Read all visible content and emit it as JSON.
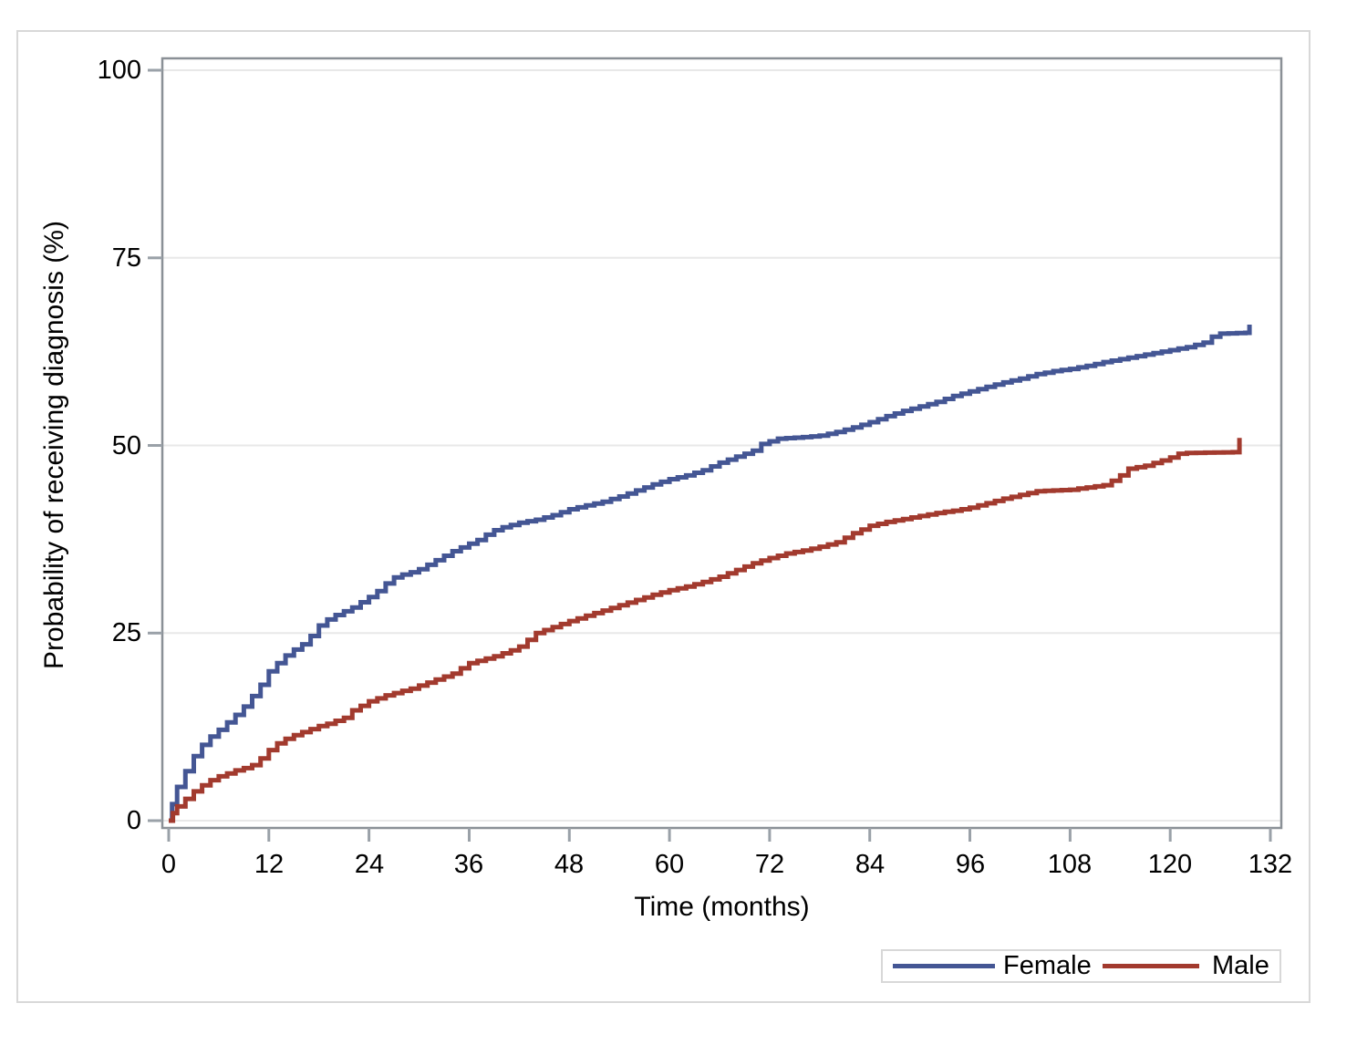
{
  "chart_data": {
    "type": "line",
    "subtype": "kaplan-meier-step",
    "title": "",
    "xlabel": "Time (months)",
    "ylabel": "Probability of receiving diagnosis (%)",
    "xlim": [
      0,
      132
    ],
    "ylim": [
      0,
      100
    ],
    "x_ticks": [
      0,
      12,
      24,
      36,
      48,
      60,
      72,
      84,
      96,
      108,
      120,
      132
    ],
    "y_ticks": [
      0,
      25,
      50,
      75,
      100
    ],
    "grid": "horizontal",
    "legend_position": "bottom-right",
    "series": [
      {
        "name": "Female",
        "color": "#445694",
        "points": [
          [
            0,
            0
          ],
          [
            0.4,
            2.2
          ],
          [
            1,
            4.5
          ],
          [
            2,
            6.6
          ],
          [
            3,
            8.6
          ],
          [
            4,
            10.1
          ],
          [
            5,
            11.2
          ],
          [
            6,
            12.1
          ],
          [
            7,
            13.1
          ],
          [
            8,
            14.1
          ],
          [
            9,
            15.2
          ],
          [
            10,
            16.6
          ],
          [
            11,
            18.1
          ],
          [
            12,
            19.9
          ],
          [
            13,
            21.0
          ],
          [
            14,
            22.0
          ],
          [
            15,
            22.8
          ],
          [
            16,
            23.5
          ],
          [
            17,
            24.6
          ],
          [
            18,
            26.0
          ],
          [
            19,
            26.8
          ],
          [
            20,
            27.4
          ],
          [
            21,
            27.9
          ],
          [
            22,
            28.4
          ],
          [
            23,
            29.1
          ],
          [
            24,
            29.8
          ],
          [
            25,
            30.6
          ],
          [
            26,
            31.6
          ],
          [
            27,
            32.4
          ],
          [
            28,
            32.8
          ],
          [
            29,
            33.1
          ],
          [
            30,
            33.5
          ],
          [
            31,
            34.1
          ],
          [
            32,
            34.7
          ],
          [
            33,
            35.3
          ],
          [
            34,
            35.9
          ],
          [
            35,
            36.4
          ],
          [
            36,
            36.9
          ],
          [
            37,
            37.4
          ],
          [
            38,
            38.1
          ],
          [
            39,
            38.7
          ],
          [
            40,
            39.1
          ],
          [
            41,
            39.4
          ],
          [
            42,
            39.7
          ],
          [
            43,
            39.9
          ],
          [
            44,
            40.1
          ],
          [
            45,
            40.4
          ],
          [
            46,
            40.7
          ],
          [
            47,
            41.1
          ],
          [
            48,
            41.5
          ],
          [
            50,
            42.0
          ],
          [
            52,
            42.5
          ],
          [
            54,
            43.2
          ],
          [
            56,
            44.0
          ],
          [
            58,
            44.8
          ],
          [
            60,
            45.5
          ],
          [
            62,
            46.0
          ],
          [
            64,
            46.7
          ],
          [
            66,
            47.7
          ],
          [
            68,
            48.5
          ],
          [
            70,
            49.3
          ],
          [
            71,
            50.2
          ],
          [
            73,
            50.9
          ],
          [
            76,
            51.1
          ],
          [
            78,
            51.3
          ],
          [
            80,
            51.8
          ],
          [
            82,
            52.4
          ],
          [
            84,
            53.1
          ],
          [
            86,
            53.9
          ],
          [
            88,
            54.6
          ],
          [
            90,
            55.2
          ],
          [
            92,
            55.8
          ],
          [
            94,
            56.6
          ],
          [
            96,
            57.2
          ],
          [
            98,
            57.8
          ],
          [
            100,
            58.4
          ],
          [
            102,
            58.9
          ],
          [
            104,
            59.5
          ],
          [
            106,
            59.9
          ],
          [
            108,
            60.2
          ],
          [
            110,
            60.6
          ],
          [
            112,
            61.1
          ],
          [
            114,
            61.5
          ],
          [
            116,
            61.9
          ],
          [
            118,
            62.3
          ],
          [
            120,
            62.7
          ],
          [
            122,
            63.1
          ],
          [
            124,
            63.7
          ],
          [
            125,
            64.5
          ],
          [
            126,
            64.9
          ],
          [
            129,
            65.0
          ],
          [
            129.5,
            66.1
          ]
        ]
      },
      {
        "name": "Male",
        "color": "#A23A2E",
        "points": [
          [
            0,
            0
          ],
          [
            0.5,
            1.0
          ],
          [
            1,
            1.9
          ],
          [
            2,
            2.9
          ],
          [
            3,
            3.9
          ],
          [
            4,
            4.7
          ],
          [
            5,
            5.4
          ],
          [
            6,
            5.9
          ],
          [
            7,
            6.3
          ],
          [
            8,
            6.7
          ],
          [
            9,
            7.0
          ],
          [
            10,
            7.4
          ],
          [
            11,
            8.3
          ],
          [
            12,
            9.4
          ],
          [
            13,
            10.3
          ],
          [
            14,
            10.9
          ],
          [
            15,
            11.4
          ],
          [
            16,
            11.8
          ],
          [
            17,
            12.2
          ],
          [
            18,
            12.6
          ],
          [
            19,
            12.9
          ],
          [
            20,
            13.3
          ],
          [
            21,
            13.7
          ],
          [
            22,
            14.7
          ],
          [
            23,
            15.3
          ],
          [
            24,
            15.9
          ],
          [
            25,
            16.3
          ],
          [
            26,
            16.7
          ],
          [
            27,
            17.0
          ],
          [
            28,
            17.3
          ],
          [
            29,
            17.6
          ],
          [
            30,
            18.0
          ],
          [
            31,
            18.4
          ],
          [
            32,
            18.8
          ],
          [
            33,
            19.2
          ],
          [
            34,
            19.6
          ],
          [
            35,
            20.3
          ],
          [
            36,
            21.0
          ],
          [
            37,
            21.3
          ],
          [
            38,
            21.6
          ],
          [
            39,
            21.9
          ],
          [
            40,
            22.3
          ],
          [
            41,
            22.7
          ],
          [
            42,
            23.2
          ],
          [
            43,
            24.1
          ],
          [
            44,
            25.0
          ],
          [
            45,
            25.4
          ],
          [
            46,
            25.8
          ],
          [
            47,
            26.2
          ],
          [
            48,
            26.6
          ],
          [
            50,
            27.3
          ],
          [
            52,
            28.0
          ],
          [
            54,
            28.7
          ],
          [
            56,
            29.4
          ],
          [
            58,
            30.1
          ],
          [
            60,
            30.7
          ],
          [
            62,
            31.2
          ],
          [
            64,
            31.8
          ],
          [
            66,
            32.5
          ],
          [
            68,
            33.4
          ],
          [
            70,
            34.3
          ],
          [
            72,
            35.0
          ],
          [
            74,
            35.6
          ],
          [
            76,
            36.0
          ],
          [
            78,
            36.5
          ],
          [
            80,
            37.1
          ],
          [
            82,
            38.3
          ],
          [
            84,
            39.3
          ],
          [
            86,
            39.8
          ],
          [
            88,
            40.2
          ],
          [
            90,
            40.6
          ],
          [
            92,
            41.0
          ],
          [
            94,
            41.3
          ],
          [
            96,
            41.7
          ],
          [
            98,
            42.3
          ],
          [
            100,
            42.9
          ],
          [
            102,
            43.4
          ],
          [
            104,
            43.9
          ],
          [
            106,
            44.0
          ],
          [
            108,
            44.1
          ],
          [
            110,
            44.4
          ],
          [
            112,
            44.7
          ],
          [
            113,
            45.3
          ],
          [
            114,
            46.0
          ],
          [
            115,
            46.9
          ],
          [
            117,
            47.3
          ],
          [
            119,
            48.0
          ],
          [
            120,
            48.4
          ],
          [
            121,
            48.9
          ],
          [
            122,
            49.0
          ],
          [
            127.5,
            49.1
          ],
          [
            128.3,
            51.0
          ]
        ]
      }
    ]
  }
}
